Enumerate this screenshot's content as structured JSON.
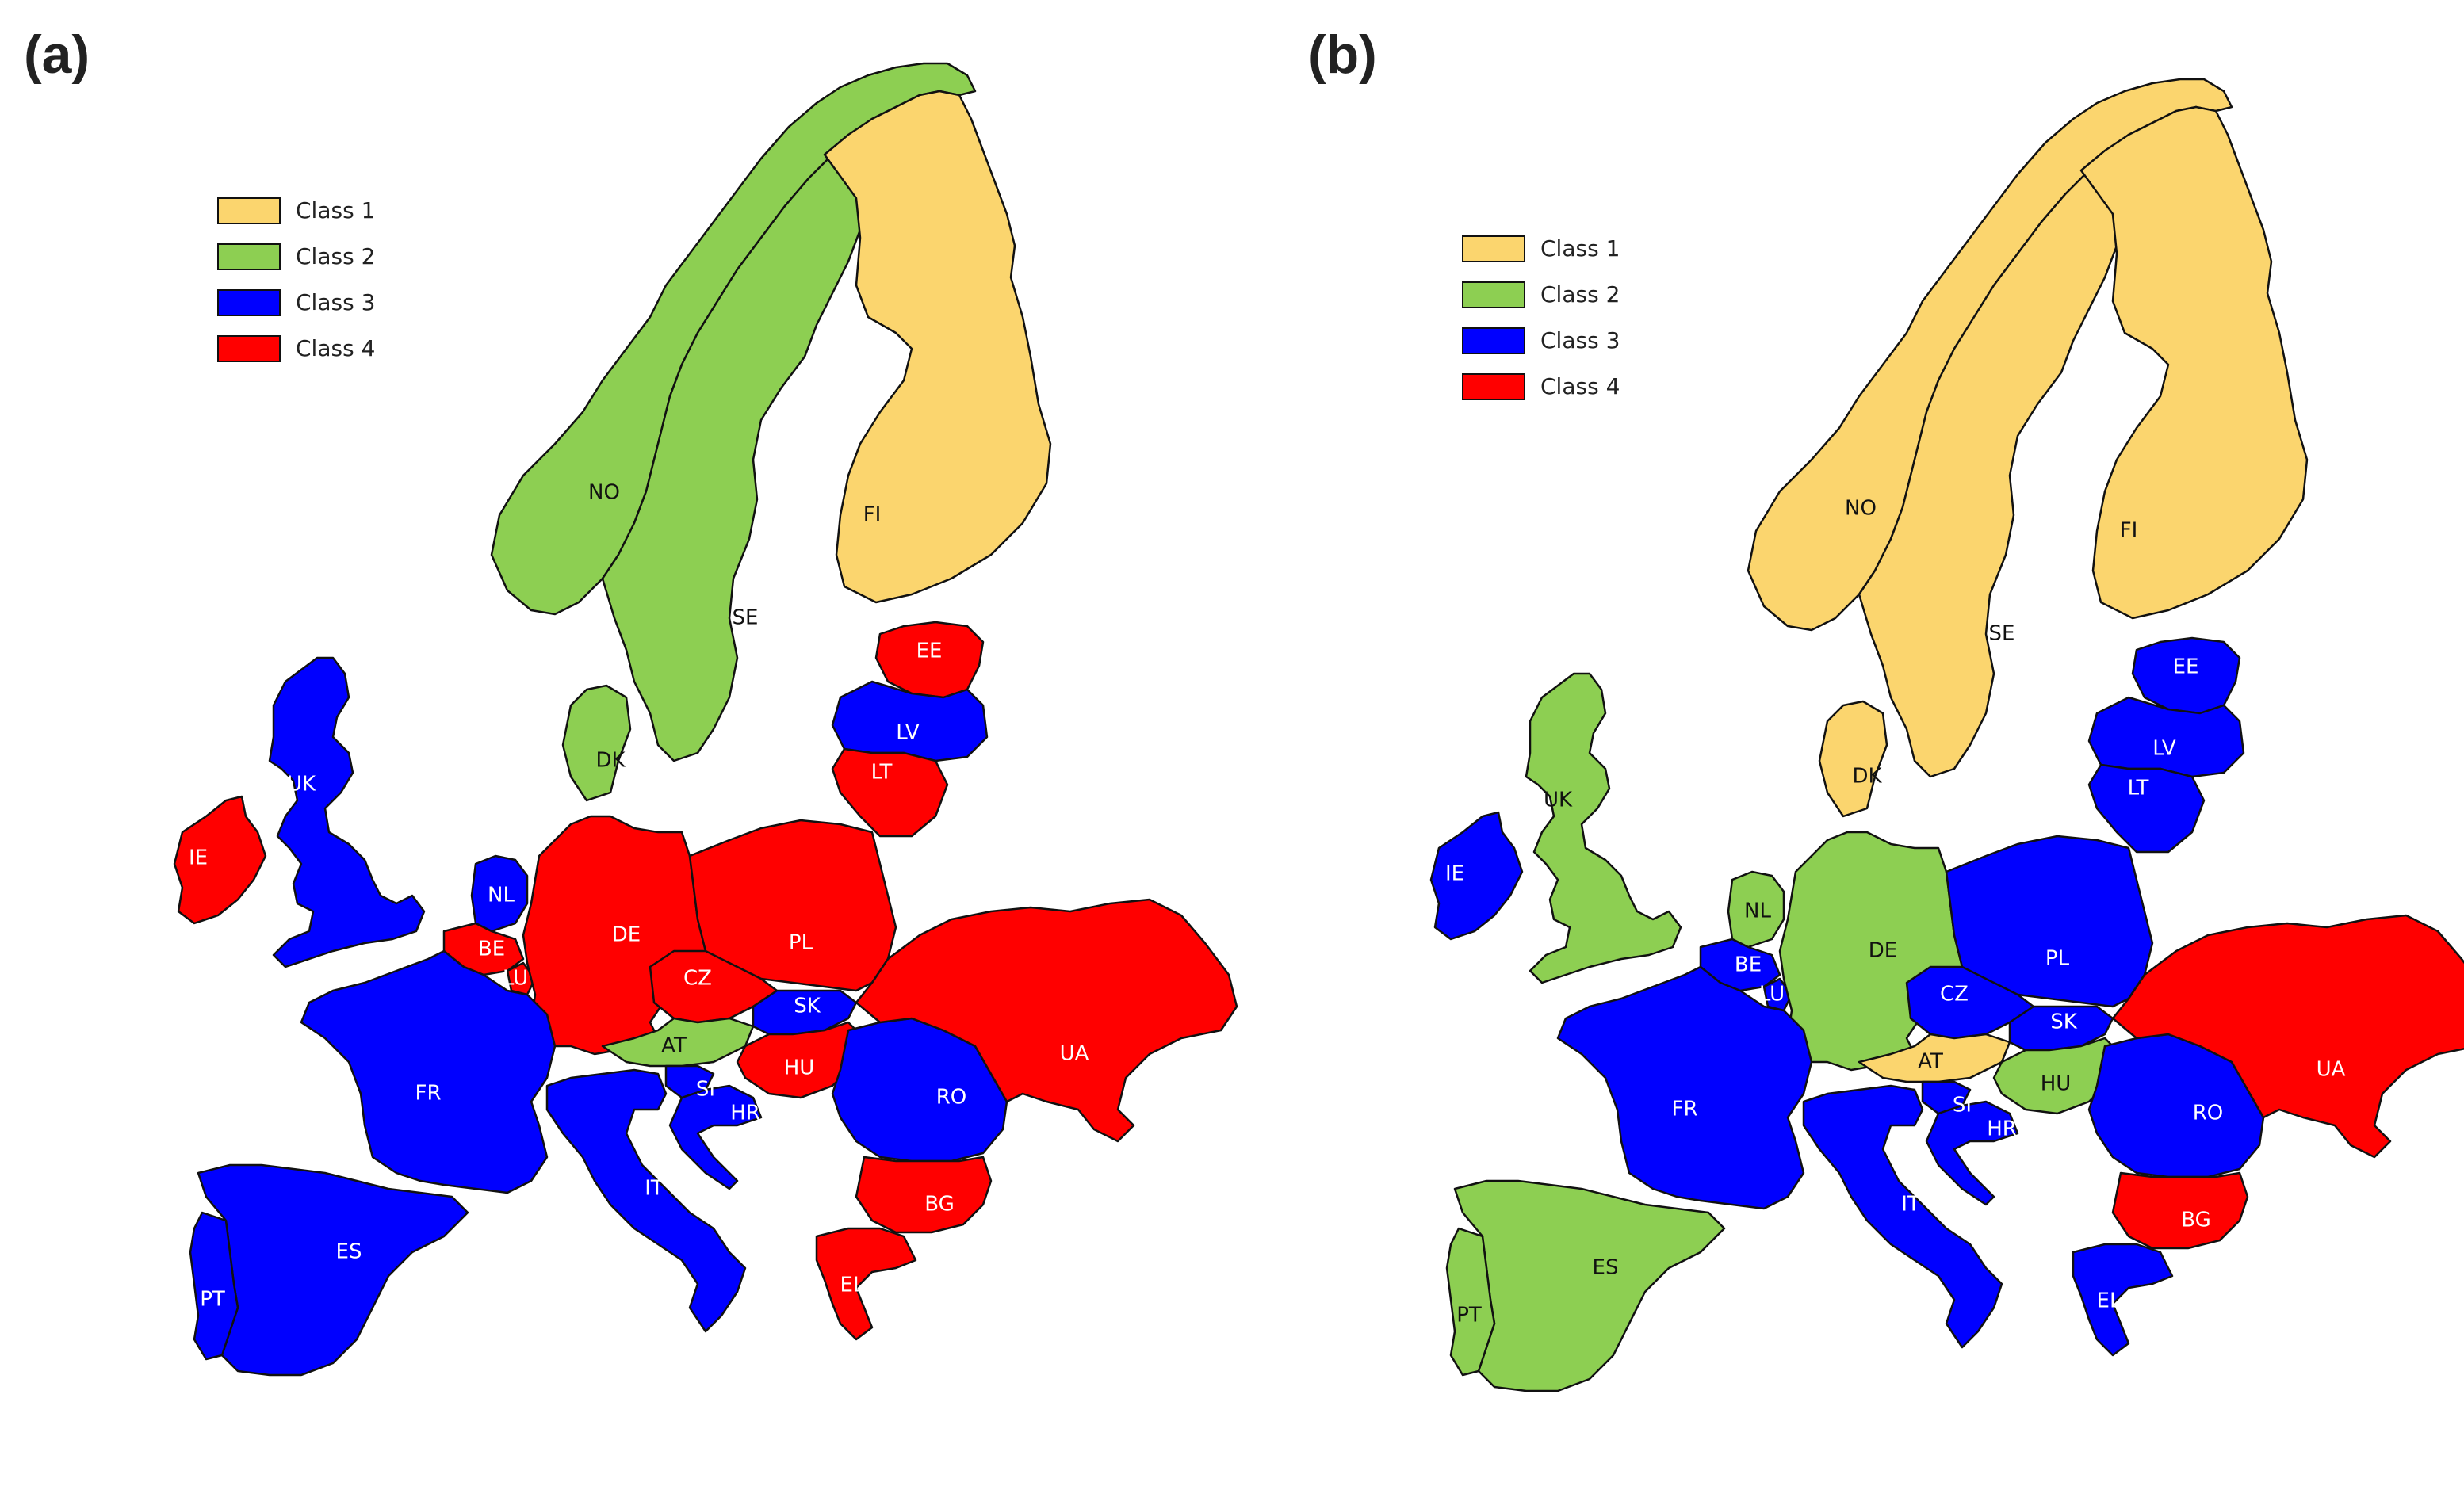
{
  "panels": [
    {
      "label": "(a)",
      "legend": [
        {
          "label": "Class 1",
          "color": "#FBD56E"
        },
        {
          "label": "Class 2",
          "color": "#8DCF52"
        },
        {
          "label": "Class 3",
          "color": "#0000FF"
        },
        {
          "label": "Class 4",
          "color": "#FF0000"
        }
      ],
      "classes": {
        "NO": 2,
        "SE": 2,
        "FI": 1,
        "DK": 2,
        "EE": 4,
        "LV": 3,
        "LT": 4,
        "UK": 3,
        "IE": 4,
        "NL": 3,
        "BE": 4,
        "LU": 4,
        "DE": 4,
        "PL": 4,
        "CZ": 4,
        "SK": 3,
        "AT": 2,
        "HU": 4,
        "SI": 3,
        "HR": 3,
        "RO": 3,
        "BG": 4,
        "EL": 4,
        "UA": 4,
        "FR": 3,
        "ES": 3,
        "PT": 3,
        "IT": 3
      }
    },
    {
      "label": "(b)",
      "legend": [
        {
          "label": "Class 1",
          "color": "#FBD56E"
        },
        {
          "label": "Class 2",
          "color": "#8DCF52"
        },
        {
          "label": "Class 3",
          "color": "#0000FF"
        },
        {
          "label": "Class 4",
          "color": "#FF0000"
        }
      ],
      "classes": {
        "NO": 1,
        "SE": 1,
        "FI": 1,
        "DK": 1,
        "EE": 3,
        "LV": 3,
        "LT": 3,
        "UK": 2,
        "IE": 3,
        "NL": 2,
        "BE": 3,
        "LU": 3,
        "DE": 2,
        "PL": 3,
        "CZ": 3,
        "SK": 3,
        "AT": 1,
        "HU": 2,
        "SI": 3,
        "HR": 3,
        "RO": 3,
        "BG": 4,
        "EL": 3,
        "UA": 4,
        "FR": 3,
        "ES": 2,
        "PT": 2,
        "IT": 3
      }
    }
  ],
  "country_codes": [
    "NO",
    "SE",
    "FI",
    "DK",
    "EE",
    "LV",
    "LT",
    "UK",
    "IE",
    "NL",
    "BE",
    "LU",
    "DE",
    "PL",
    "CZ",
    "SK",
    "AT",
    "HU",
    "SI",
    "HR",
    "RO",
    "BG",
    "EL",
    "UA",
    "FR",
    "ES",
    "PT",
    "IT"
  ]
}
